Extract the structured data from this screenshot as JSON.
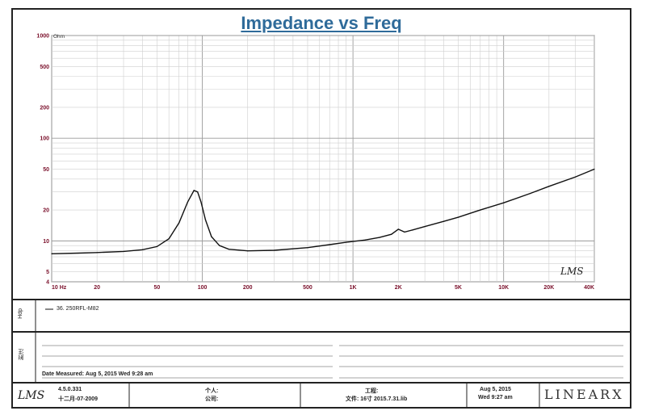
{
  "chart_data": {
    "type": "line",
    "title": "Impedance vs Freq",
    "y_unit_label": "Ohm",
    "x_scale": "log",
    "y_scale": "log",
    "xlim": [
      10,
      40000
    ],
    "ylim": [
      4,
      1000
    ],
    "grid": true,
    "x_ticks": [
      {
        "value": 10,
        "label": "10 Hz"
      },
      {
        "value": 20,
        "label": "20"
      },
      {
        "value": 50,
        "label": "50"
      },
      {
        "value": 100,
        "label": "100"
      },
      {
        "value": 200,
        "label": "200"
      },
      {
        "value": 500,
        "label": "500"
      },
      {
        "value": 1000,
        "label": "1K"
      },
      {
        "value": 2000,
        "label": "2K"
      },
      {
        "value": 5000,
        "label": "5K"
      },
      {
        "value": 10000,
        "label": "10K"
      },
      {
        "value": 20000,
        "label": "20K"
      },
      {
        "value": 40000,
        "label": "40K"
      }
    ],
    "y_ticks": [
      {
        "value": 4,
        "label": "4"
      },
      {
        "value": 5,
        "label": "5"
      },
      {
        "value": 10,
        "label": "10"
      },
      {
        "value": 20,
        "label": "20"
      },
      {
        "value": 50,
        "label": "50"
      },
      {
        "value": 100,
        "label": "100"
      },
      {
        "value": 200,
        "label": "200"
      },
      {
        "value": 500,
        "label": "500"
      },
      {
        "value": 1000,
        "label": "1000"
      }
    ],
    "series": [
      {
        "name": "36. 250RFL-M82",
        "color": "#111111",
        "x": [
          10,
          15,
          20,
          30,
          40,
          50,
          60,
          70,
          80,
          88,
          93,
          98,
          105,
          115,
          130,
          150,
          200,
          300,
          500,
          700,
          900,
          1200,
          1500,
          1800,
          2000,
          2200,
          2500,
          3000,
          4000,
          5000,
          7000,
          10000,
          15000,
          20000,
          30000,
          40000
        ],
        "y": [
          7.5,
          7.6,
          7.7,
          7.9,
          8.2,
          8.8,
          10.5,
          15,
          24,
          31,
          30,
          24,
          16,
          11,
          9,
          8.3,
          8.0,
          8.1,
          8.6,
          9.2,
          9.7,
          10.2,
          10.8,
          11.6,
          13.0,
          12.2,
          12.8,
          13.8,
          15.5,
          17,
          20,
          23.5,
          29,
          34,
          42,
          50
        ]
      }
    ],
    "watermark": "LMS"
  },
  "legend": {
    "section_label": "Hdp",
    "entry": "36. 250RFL-M82"
  },
  "notes": {
    "section_label": "附注",
    "date_measured": "Date Measured: Aug 5, 2015  Wed  9:28 am"
  },
  "footer": {
    "logo": "LMS",
    "version": "4.5.0.331",
    "build_date": "十二月-07-2009",
    "person_label": "个人:",
    "company_label": "公司:",
    "project_label": "工程:",
    "file_label": "文件: 16寸 2015.7.31.lib",
    "date": "Aug 5, 2015",
    "time": "Wed  9:27 am",
    "brand": "LINEARX"
  }
}
